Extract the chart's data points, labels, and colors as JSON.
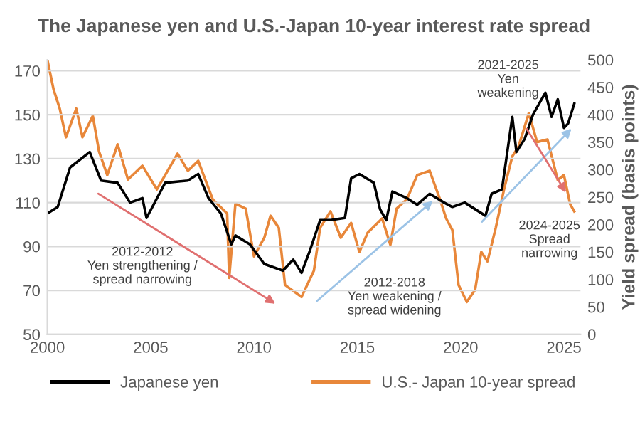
{
  "chart_data": {
    "type": "line",
    "title": "The Japanese yen and U.S.-Japan 10-year interest rate spread",
    "y2label": "Yield spread (basis points)",
    "xlim": [
      2000,
      2025.8
    ],
    "xticks": [
      2000,
      2005,
      2010,
      2015,
      2020,
      2025
    ],
    "ylim": [
      50,
      175
    ],
    "yticks": [
      50,
      70,
      90,
      110,
      130,
      150,
      170
    ],
    "y2lim": [
      0,
      500
    ],
    "y2ticks": [
      0,
      50,
      100,
      150,
      200,
      250,
      300,
      350,
      400,
      450,
      500
    ],
    "grid": "y",
    "legend": "bottom",
    "line_style": "solid",
    "series": [
      {
        "name": "Japanese yen",
        "color": "#000000",
        "x": [
          2000.0,
          2000.5,
          2001.1,
          2002.05,
          2002.6,
          2003.4,
          2004.0,
          2004.6,
          2004.8,
          2005.7,
          2006.8,
          2007.3,
          2007.8,
          2008.4,
          2008.9,
          2009.1,
          2009.8,
          2010.5,
          2011.4,
          2011.9,
          2012.3,
          2012.7,
          2013.2,
          2013.7,
          2014.4,
          2014.7,
          2015.1,
          2015.8,
          2016.1,
          2016.4,
          2016.7,
          2017.4,
          2017.9,
          2018.5,
          2019.2,
          2019.6,
          2020.2,
          2021.2,
          2021.5,
          2022.0,
          2022.5,
          2022.7,
          2023.1,
          2023.5,
          2024.1,
          2024.4,
          2024.7,
          2025.0,
          2025.2,
          2025.5
        ],
        "values": [
          105,
          108,
          126,
          133,
          120,
          119,
          110,
          112,
          103,
          119,
          120,
          123,
          112,
          105,
          91,
          95,
          91,
          82,
          79,
          84,
          78,
          88,
          102,
          102,
          103,
          121,
          123,
          119,
          107,
          102,
          115,
          112,
          109,
          114,
          110,
          108,
          110,
          104,
          114,
          116,
          149,
          133,
          139,
          150,
          160,
          149,
          157,
          144,
          146,
          155
        ]
      },
      {
        "name": "U.S.- Japan 10-year spread",
        "color": "#e8873a",
        "axis": "y2",
        "x": [
          2000.0,
          2000.3,
          2000.6,
          2000.9,
          2001.4,
          2001.7,
          2002.2,
          2002.5,
          2002.9,
          2003.4,
          2003.9,
          2004.6,
          2005.3,
          2006.3,
          2006.8,
          2007.3,
          2008.0,
          2008.7,
          2008.8,
          2009.1,
          2009.6,
          2010.0,
          2010.5,
          2010.8,
          2011.2,
          2011.5,
          2012.3,
          2012.9,
          2013.2,
          2013.7,
          2014.2,
          2014.7,
          2015.1,
          2015.5,
          2016.2,
          2016.6,
          2016.9,
          2017.4,
          2017.9,
          2018.5,
          2019.0,
          2019.3,
          2019.6,
          2019.9,
          2020.3,
          2020.7,
          2021.0,
          2021.3,
          2021.7,
          2021.9,
          2022.1,
          2022.5,
          2022.8,
          2023.3,
          2023.7,
          2024.2,
          2024.7,
          2025.0,
          2025.3,
          2025.5
        ],
        "values": [
          500,
          446,
          411,
          359,
          411,
          359,
          398,
          333,
          290,
          346,
          282,
          307,
          264,
          329,
          298,
          316,
          246,
          220,
          103,
          238,
          229,
          142,
          176,
          216,
          194,
          90,
          68,
          116,
          194,
          224,
          176,
          203,
          150,
          185,
          211,
          163,
          229,
          246,
          290,
          298,
          246,
          211,
          190,
          90,
          59,
          81,
          150,
          133,
          194,
          229,
          264,
          324,
          342,
          403,
          350,
          355,
          281,
          290,
          237,
          224
        ]
      }
    ],
    "annotations": [
      "2012-2012\nYen strengthening /\nspread narrowing",
      "2012-2018\nYen weakening /\nspread widening",
      "2021-2025\nYen\nweakening",
      "2024-2025\nSpread\nnarrowing"
    ]
  }
}
